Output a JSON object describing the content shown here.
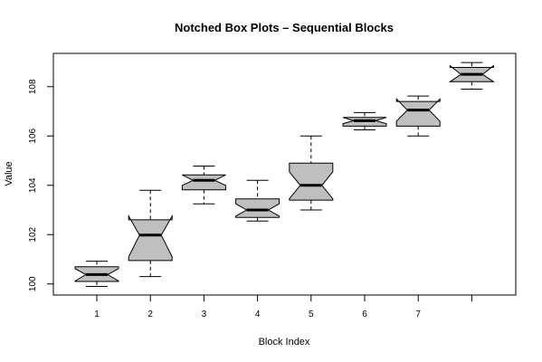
{
  "chart_data": {
    "type": "boxplot",
    "notched": true,
    "title": "Notched Box Plots – Sequential Blocks",
    "xlabel": "Block Index",
    "ylabel": "Value",
    "categories": [
      "1",
      "2",
      "3",
      "4",
      "5",
      "6",
      "7",
      ""
    ],
    "ylim": [
      99.55,
      109.35
    ],
    "yticks": [
      "100",
      "102",
      "104",
      "106",
      "108"
    ],
    "box_fill": "#bfbfbf",
    "boxes": [
      {
        "whisker_low": 99.9,
        "q1": 100.1,
        "median": 100.38,
        "q3": 100.7,
        "whisker_high": 100.92,
        "notch_low": 100.12,
        "notch_high": 100.62
      },
      {
        "whisker_low": 100.3,
        "q1": 100.95,
        "median": 101.98,
        "q3": 102.6,
        "whisker_high": 103.8,
        "notch_low": 101.1,
        "notch_high": 102.75
      },
      {
        "whisker_low": 103.25,
        "q1": 103.82,
        "median": 104.2,
        "q3": 104.42,
        "whisker_high": 104.78,
        "notch_low": 104.0,
        "notch_high": 104.42
      },
      {
        "whisker_low": 102.55,
        "q1": 102.7,
        "median": 103.0,
        "q3": 103.45,
        "whisker_high": 104.2,
        "notch_low": 102.75,
        "notch_high": 103.25
      },
      {
        "whisker_low": 103.0,
        "q1": 103.4,
        "median": 104.0,
        "q3": 104.9,
        "whisker_high": 106.0,
        "notch_low": 103.45,
        "notch_high": 104.55
      },
      {
        "whisker_low": 106.25,
        "q1": 106.4,
        "median": 106.62,
        "q3": 106.75,
        "whisker_high": 106.95,
        "notch_low": 106.5,
        "notch_high": 106.75
      },
      {
        "whisker_low": 106.0,
        "q1": 106.4,
        "median": 107.05,
        "q3": 107.4,
        "whisker_high": 107.62,
        "notch_low": 106.6,
        "notch_high": 107.5
      },
      {
        "whisker_low": 107.9,
        "q1": 108.2,
        "median": 108.5,
        "q3": 108.78,
        "whisker_high": 108.98,
        "notch_low": 108.2,
        "notch_high": 108.85
      }
    ]
  }
}
